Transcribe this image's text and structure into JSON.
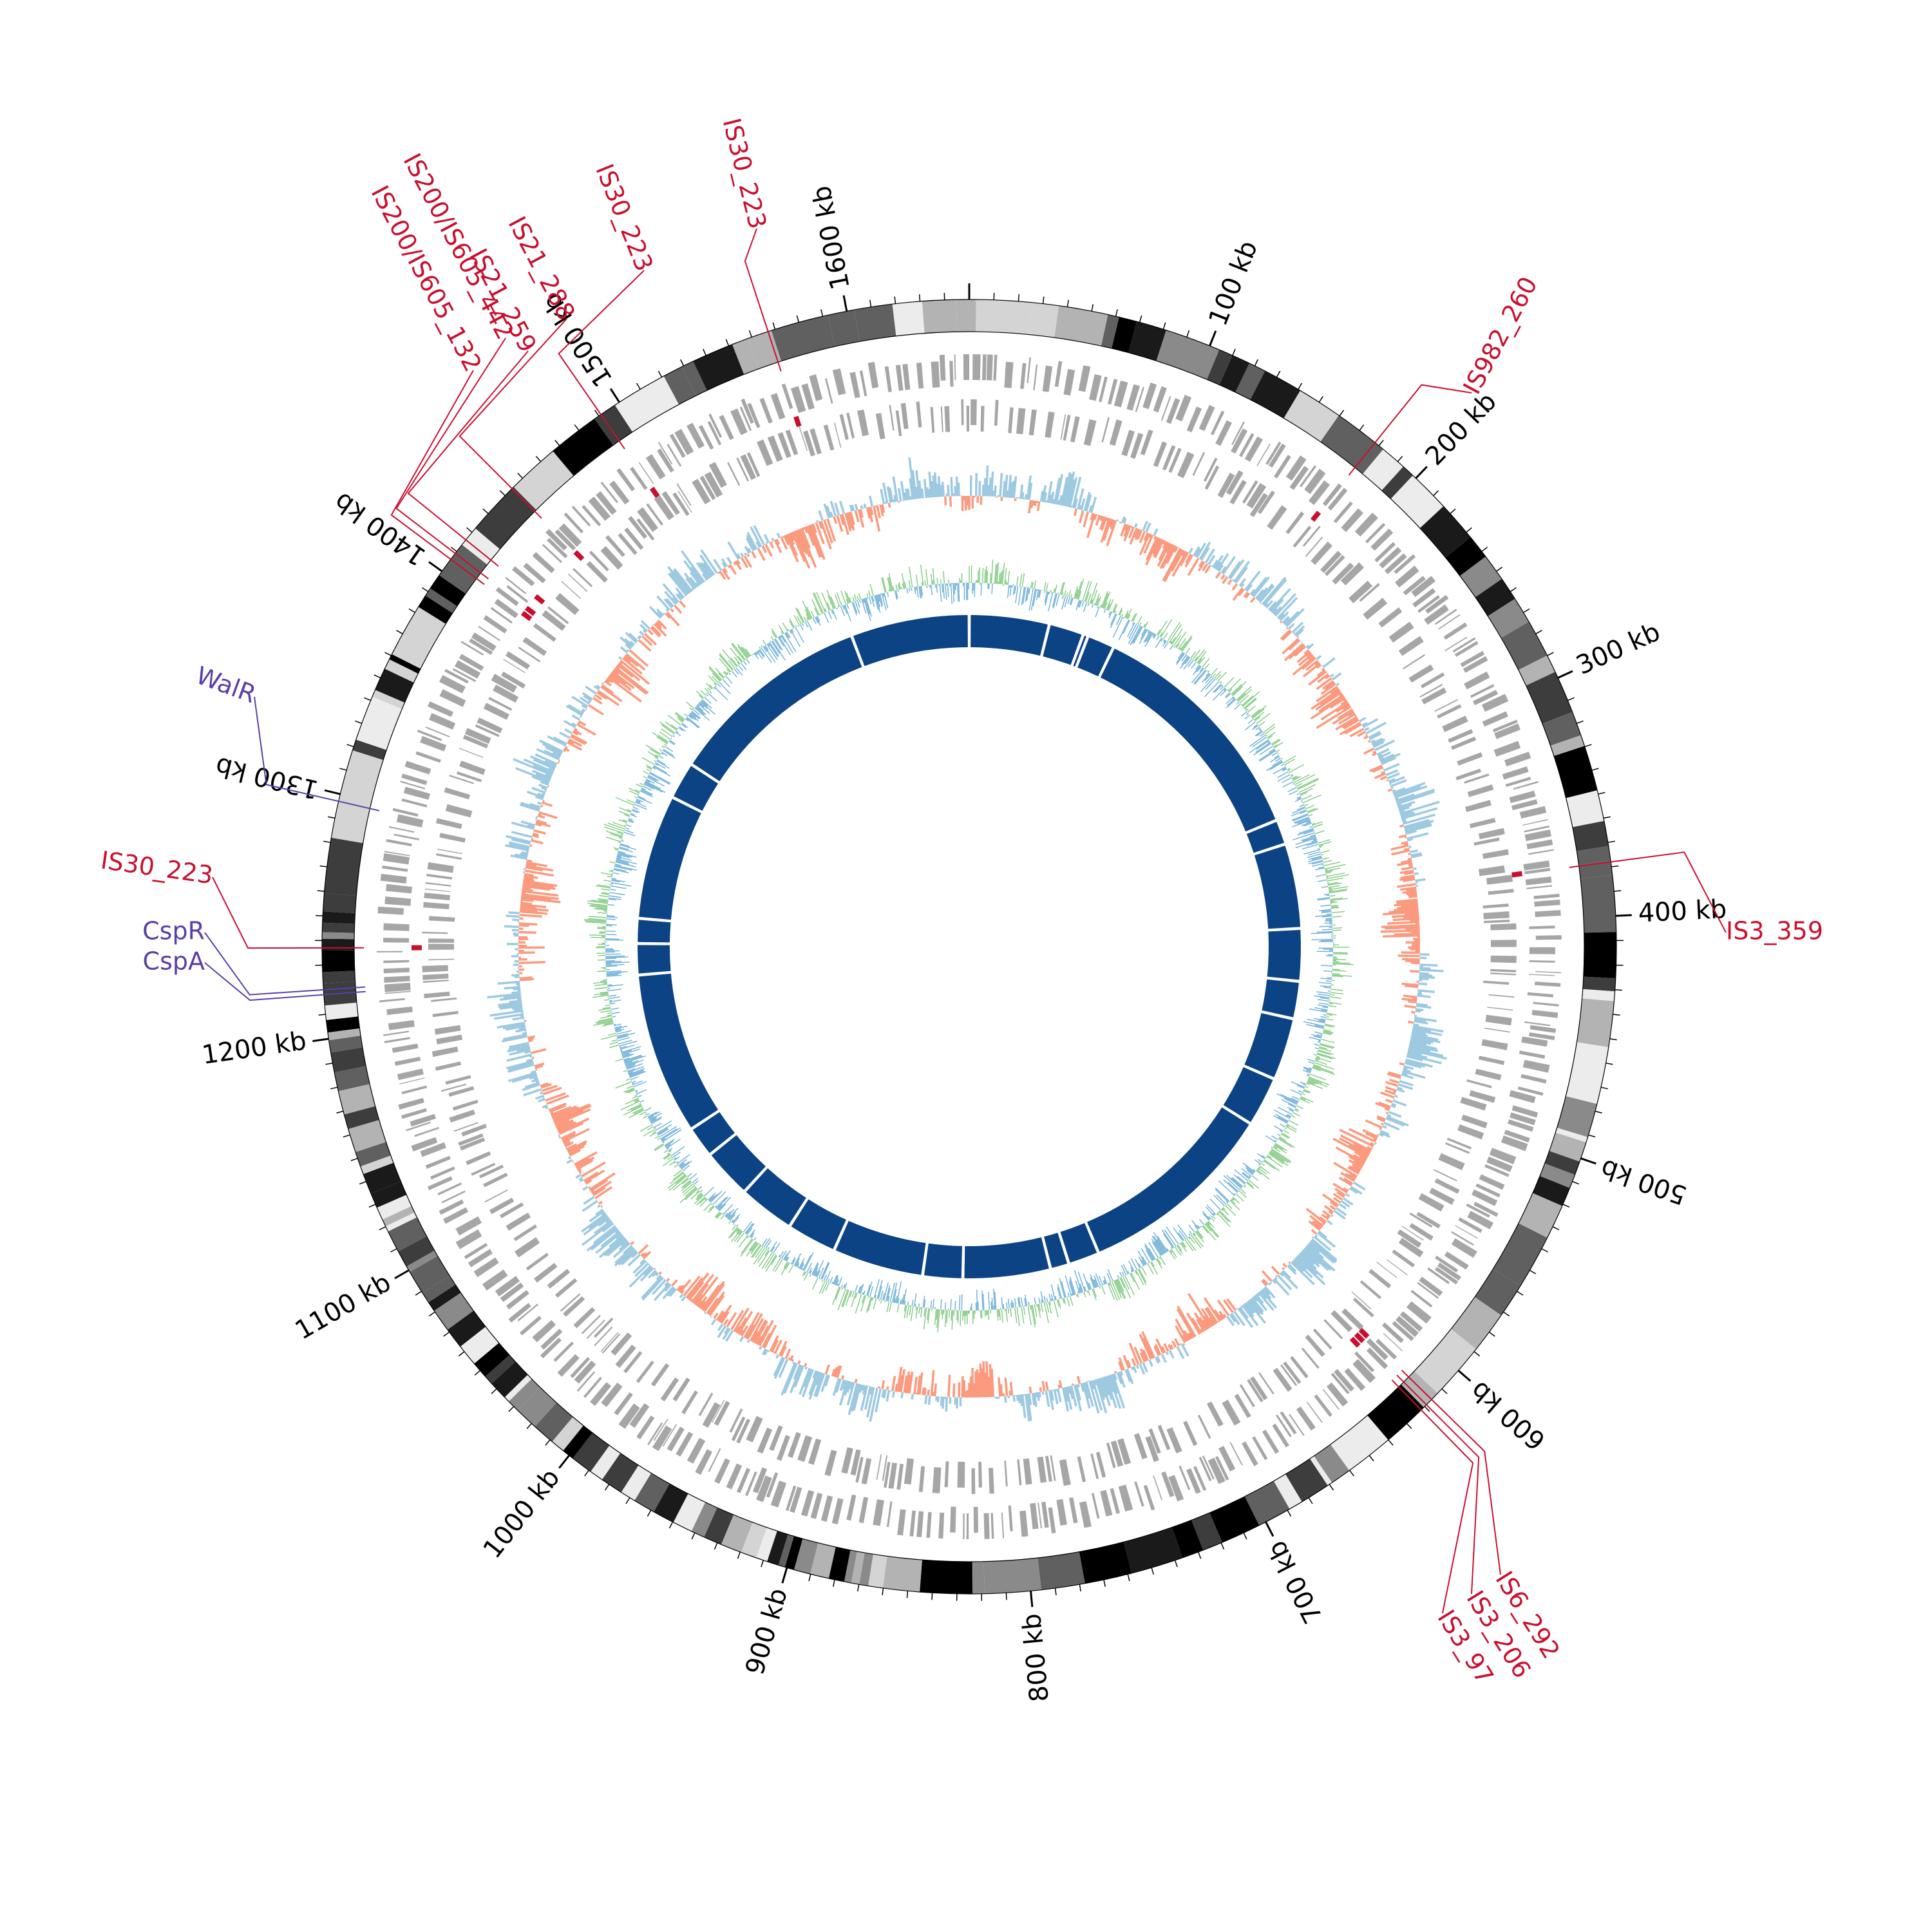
{
  "genome": {
    "total_kb": 1650,
    "tick_labels": [
      {
        "kb": 100,
        "label": "100 kb"
      },
      {
        "kb": 200,
        "label": "200 kb"
      },
      {
        "kb": 300,
        "label": "300 kb"
      },
      {
        "kb": 400,
        "label": "400 kb"
      },
      {
        "kb": 500,
        "label": "500 kb"
      },
      {
        "kb": 600,
        "label": "600 kb"
      },
      {
        "kb": 700,
        "label": "700 kb"
      },
      {
        "kb": 800,
        "label": "800 kb"
      },
      {
        "kb": 900,
        "label": "900 kb"
      },
      {
        "kb": 1000,
        "label": "1000 kb"
      },
      {
        "kb": 1100,
        "label": "1100 kb"
      },
      {
        "kb": 1200,
        "label": "1200 kb"
      },
      {
        "kb": 1300,
        "label": "1300 kb"
      },
      {
        "kb": 1400,
        "label": "1400 kb"
      },
      {
        "kb": 1500,
        "label": "1500 kb"
      },
      {
        "kb": 1600,
        "label": "1600 kb"
      }
    ]
  },
  "annotations": [
    {
      "label": "IS982_260",
      "kb": 178,
      "color": "#c8102e"
    },
    {
      "label": "IS3_359",
      "kb": 378,
      "color": "#c8102e"
    },
    {
      "label": "IS6_292",
      "kb": 616,
      "color": "#c8102e"
    },
    {
      "label": "IS3_206",
      "kb": 619,
      "color": "#c8102e"
    },
    {
      "label": "IS3_97",
      "kb": 622,
      "color": "#c8102e"
    },
    {
      "label": "IS30_223",
      "kb": 1237,
      "color": "#c8102e"
    },
    {
      "label": "CspR",
      "kb": 1220,
      "color": "#5a3ea8"
    },
    {
      "label": "CspA",
      "kb": 1218,
      "color": "#5a3ea8"
    },
    {
      "label": "WalR",
      "kb": 1297,
      "color": "#5a3ea8"
    },
    {
      "label": "IS200/IS605_132",
      "kb": 1406,
      "color": "#c8102e"
    },
    {
      "label": "IS200/IS605_442",
      "kb": 1409,
      "color": "#c8102e"
    },
    {
      "label": "IS21_259",
      "kb": 1416,
      "color": "#c8102e"
    },
    {
      "label": "IS21_288",
      "kb": 1444,
      "color": "#c8102e"
    },
    {
      "label": "IS30_223",
      "kb": 1491,
      "color": "#c8102e"
    },
    {
      "label": "IS30_223",
      "kb": 1567,
      "color": "#c8102e"
    }
  ],
  "tracks": {
    "contig_colors": [
      "#000000",
      "#1a1a1a",
      "#3d3d3d",
      "#606060",
      "#8a8a8a",
      "#b3b3b3",
      "#d4d4d4",
      "#ececec"
    ],
    "gene_color": "#a6a6a6",
    "skew_positive_color": "#9ecae1",
    "skew_negative_color": "#fb9a7e",
    "gc_content_colors": [
      "#7fc97f",
      "#6baed6"
    ],
    "synteny_color": "#0b4384"
  }
}
